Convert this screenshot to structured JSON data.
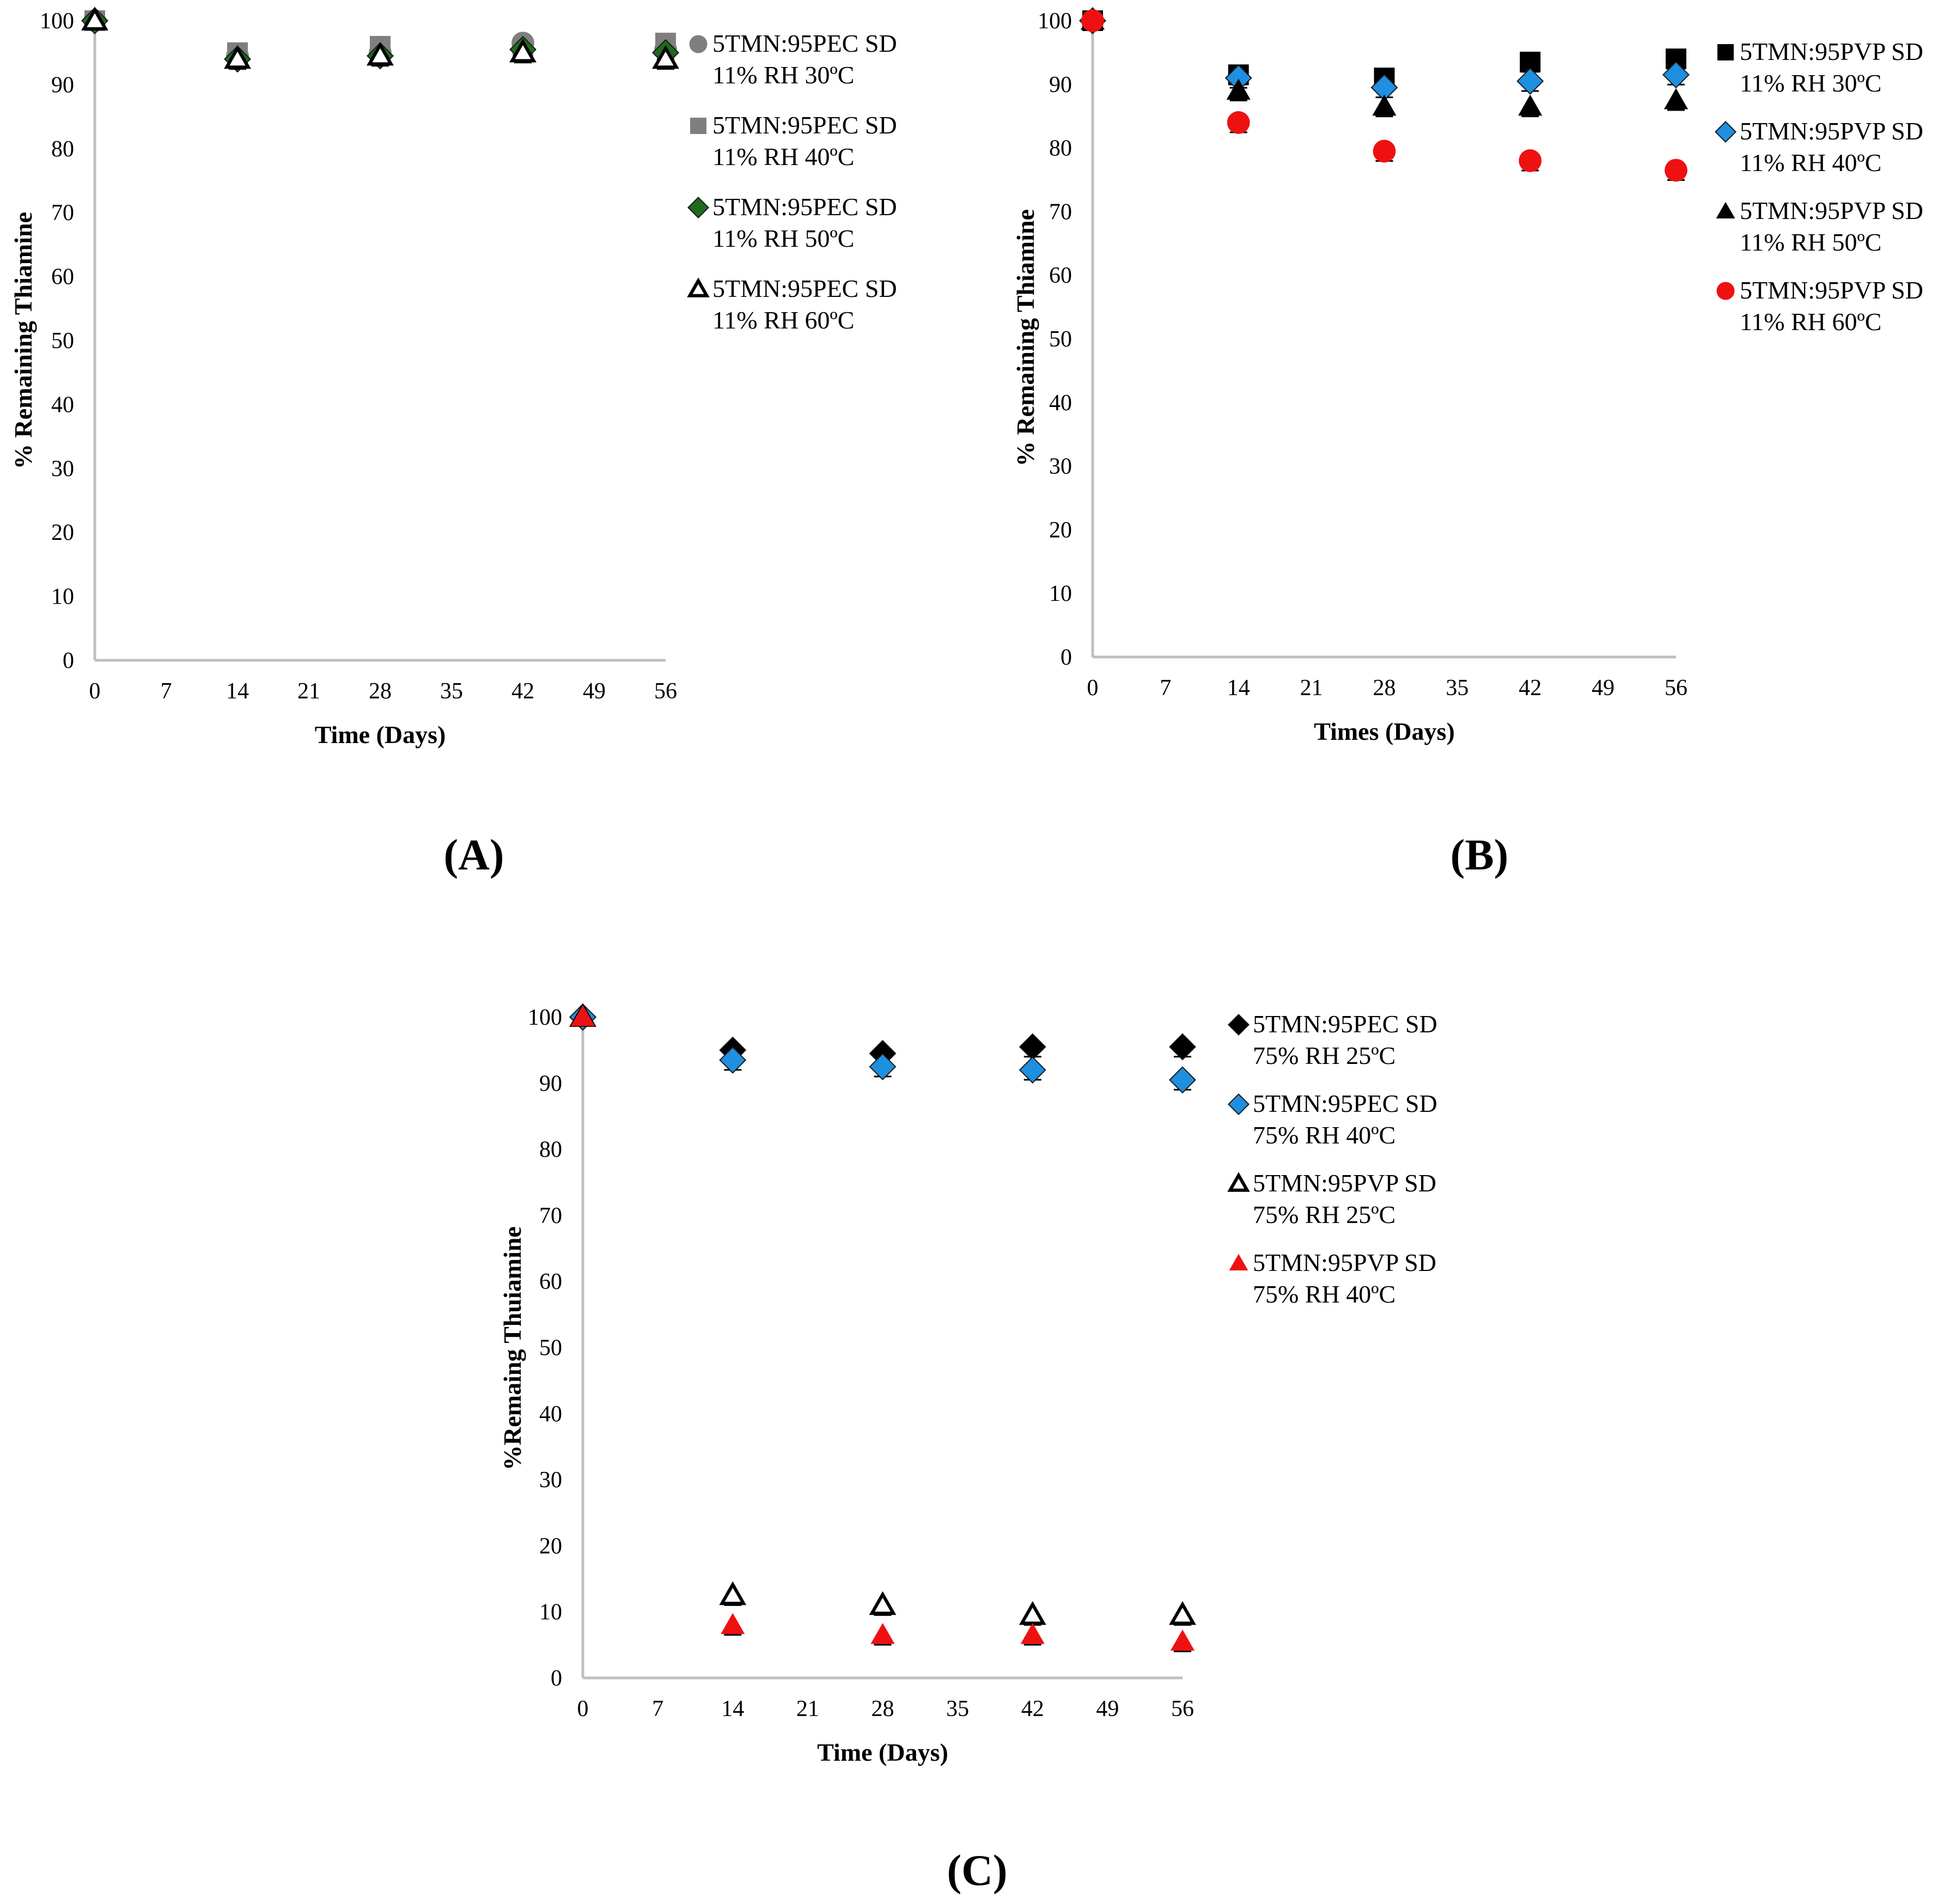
{
  "figure": {
    "colors": {
      "axis": "#bfbfbf",
      "gray": "#7f7f7f",
      "green": "#1e6b1e",
      "blue": "#1f8fe0",
      "red": "#ee1111",
      "black": "#000000"
    },
    "panels": [
      {
        "label": "(A)"
      },
      {
        "label": "(B)"
      },
      {
        "label": "(C)"
      }
    ]
  },
  "chart_data": [
    {
      "type": "scatter",
      "panel": "(A)",
      "title": "",
      "xlabel": "Time (Days)",
      "ylabel": "% Remaining Thiamine",
      "xlim": [
        0,
        56
      ],
      "ylim": [
        0,
        100
      ],
      "xticks": [
        0,
        7,
        14,
        21,
        28,
        35,
        42,
        49,
        56
      ],
      "yticks": [
        0,
        10,
        20,
        30,
        40,
        50,
        60,
        70,
        80,
        90,
        100
      ],
      "x": [
        0,
        14,
        28,
        42,
        56
      ],
      "series": [
        {
          "name": "5TMN:95PEC SD",
          "condition": "11% RH 30ºC",
          "marker": "circle",
          "color": "#7f7f7f",
          "values": [
            100,
            94.5,
            95.0,
            96.5,
            95.5
          ]
        },
        {
          "name": "5TMN:95PEC SD",
          "condition": "11% RH 40ºC",
          "marker": "square",
          "color": "#7f7f7f",
          "values": [
            100,
            95.0,
            96.0,
            95.5,
            96.5
          ]
        },
        {
          "name": "5TMN:95PEC SD",
          "condition": "11% RH 50ºC",
          "marker": "diamond",
          "color": "#1e6b1e",
          "values": [
            100,
            94.0,
            94.5,
            95.5,
            95.0
          ]
        },
        {
          "name": "5TMN:95PEC SD",
          "condition": "11% RH 60ºC",
          "marker": "triangle-open",
          "color": "#000000",
          "values": [
            100,
            94.0,
            94.5,
            95.0,
            94.0
          ]
        }
      ]
    },
    {
      "type": "scatter",
      "panel": "(B)",
      "title": "",
      "xlabel": "Times (Days)",
      "ylabel": "% Remaining Thiamine",
      "xlim": [
        0,
        56
      ],
      "ylim": [
        0,
        100
      ],
      "xticks": [
        0,
        7,
        14,
        21,
        28,
        35,
        42,
        49,
        56
      ],
      "yticks": [
        0,
        10,
        20,
        30,
        40,
        50,
        60,
        70,
        80,
        90,
        100
      ],
      "x": [
        0,
        14,
        28,
        42,
        56
      ],
      "series": [
        {
          "name": "5TMN:95PVP SD",
          "condition": "11% RH 30ºC",
          "marker": "square",
          "color": "#000000",
          "values": [
            100,
            91.5,
            91.0,
            93.5,
            94.0
          ]
        },
        {
          "name": "5TMN:95PVP SD",
          "condition": "11% RH 40ºC",
          "marker": "diamond",
          "color": "#1f8fe0",
          "values": [
            100,
            91.0,
            89.5,
            90.5,
            91.5
          ]
        },
        {
          "name": "5TMN:95PVP SD",
          "condition": "11% RH 50ºC",
          "marker": "triangle",
          "color": "#000000",
          "values": [
            100,
            89.0,
            86.5,
            86.5,
            87.5
          ]
        },
        {
          "name": "5TMN:95PVP SD",
          "condition": "11% RH 60ºC",
          "marker": "circle",
          "color": "#ee1111",
          "values": [
            100,
            84.0,
            79.5,
            78.0,
            76.5
          ]
        }
      ]
    },
    {
      "type": "scatter",
      "panel": "(C)",
      "title": "",
      "xlabel": "Time (Days)",
      "ylabel": "%Remaing Thuiamine",
      "xlim": [
        0,
        56
      ],
      "ylim": [
        0,
        100
      ],
      "xticks": [
        0,
        7,
        14,
        21,
        28,
        35,
        42,
        49,
        56
      ],
      "yticks": [
        0,
        10,
        20,
        30,
        40,
        50,
        60,
        70,
        80,
        90,
        100
      ],
      "x": [
        0,
        14,
        28,
        42,
        56
      ],
      "series": [
        {
          "name": "5TMN:95PEC SD",
          "condition": "75% RH 25ºC",
          "marker": "diamond",
          "color": "#000000",
          "values": [
            100,
            95.0,
            94.5,
            95.5,
            95.5
          ]
        },
        {
          "name": "5TMN:95PEC SD",
          "condition": "75% RH 40ºC",
          "marker": "diamond",
          "color": "#1f8fe0",
          "values": [
            100,
            93.5,
            92.5,
            92.0,
            90.5
          ]
        },
        {
          "name": "5TMN:95PVP SD",
          "condition": "75% RH 25ºC",
          "marker": "triangle-open",
          "color": "#000000",
          "values": [
            100,
            12.5,
            11.0,
            9.5,
            9.5
          ]
        },
        {
          "name": "5TMN:95PVP SD",
          "condition": "75% RH 40ºC",
          "marker": "triangle",
          "color": "#ee1111",
          "values": [
            100,
            8.0,
            6.5,
            6.5,
            5.5
          ]
        }
      ]
    }
  ]
}
